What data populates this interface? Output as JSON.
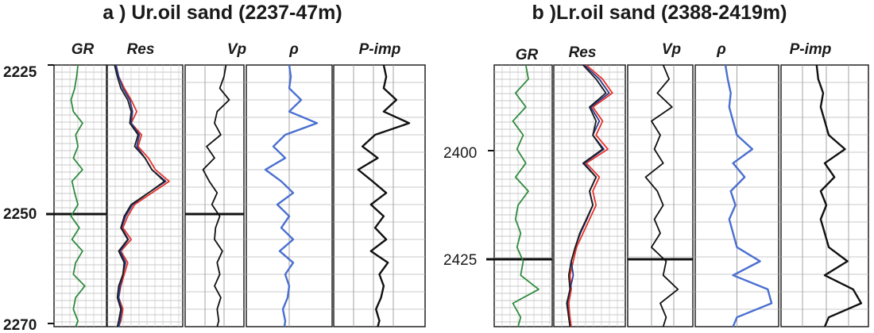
{
  "panels": [
    {
      "title": "a ) Ur.oil sand (2237-47m)"
    },
    {
      "title": "b )Lr.oil sand (2388-2419m)"
    }
  ],
  "colors": {
    "gr": "#2e8b3e",
    "res_deep": "#1a1a1a",
    "res_shallow": "#e8322a",
    "res_medium": "#2a3a8c",
    "rho": "#4a6fd0",
    "curve": "#111111"
  },
  "chart_data": [
    {
      "type": "line",
      "title": "a ) Ur.oil sand (2237-47m)",
      "depth_ticks": [
        "2225",
        "2250",
        "2270"
      ],
      "ylim": [
        2225,
        2270
      ],
      "tracks": [
        "GR",
        "Res",
        "Vp",
        "ρ",
        "P-imp"
      ],
      "marker_depth": 2250,
      "depth": [
        2225,
        2227,
        2229,
        2231,
        2233,
        2235,
        2237,
        2239,
        2241,
        2243,
        2245,
        2247,
        2249,
        2251,
        2253,
        2255,
        2257,
        2259,
        2261,
        2263,
        2265,
        2267,
        2269,
        2270
      ],
      "series": [
        {
          "name": "GR",
          "track": "GR",
          "color": "#2e8b3e",
          "values": [
            0.45,
            0.42,
            0.38,
            0.3,
            0.35,
            0.55,
            0.4,
            0.45,
            0.35,
            0.55,
            0.32,
            0.38,
            0.45,
            0.3,
            0.48,
            0.32,
            0.55,
            0.4,
            0.35,
            0.6,
            0.4,
            0.35,
            0.45,
            0.4
          ]
        },
        {
          "name": "Res shallow",
          "track": "Res",
          "color": "#e8322a",
          "values": [
            0.08,
            0.12,
            0.2,
            0.3,
            0.38,
            0.3,
            0.45,
            0.4,
            0.55,
            0.65,
            0.85,
            0.6,
            0.35,
            0.25,
            0.18,
            0.3,
            0.15,
            0.25,
            0.2,
            0.15,
            0.12,
            0.18,
            0.15,
            0.12
          ]
        },
        {
          "name": "Res medium",
          "track": "Res",
          "color": "#2a3a8c",
          "values": [
            0.08,
            0.12,
            0.18,
            0.28,
            0.32,
            0.3,
            0.42,
            0.38,
            0.5,
            0.6,
            0.8,
            0.55,
            0.32,
            0.22,
            0.16,
            0.26,
            0.14,
            0.22,
            0.18,
            0.14,
            0.12,
            0.16,
            0.14,
            0.12
          ]
        },
        {
          "name": "Res deep",
          "track": "Res",
          "color": "#1a1a1a",
          "values": [
            0.06,
            0.1,
            0.15,
            0.25,
            0.3,
            0.28,
            0.4,
            0.35,
            0.5,
            0.6,
            0.78,
            0.55,
            0.3,
            0.2,
            0.15,
            0.25,
            0.12,
            0.2,
            0.18,
            0.12,
            0.1,
            0.15,
            0.12,
            0.1
          ]
        },
        {
          "name": "Vp",
          "track": "Vp",
          "color": "#111111",
          "values": [
            0.72,
            0.68,
            0.6,
            0.78,
            0.55,
            0.5,
            0.62,
            0.35,
            0.5,
            0.28,
            0.4,
            0.55,
            0.45,
            0.6,
            0.52,
            0.5,
            0.65,
            0.55,
            0.6,
            0.5,
            0.62,
            0.55,
            0.58,
            0.55
          ]
        },
        {
          "name": "ρ",
          "track": "ρ",
          "color": "#4a6fd0",
          "values": [
            0.5,
            0.52,
            0.5,
            0.65,
            0.5,
            0.85,
            0.45,
            0.3,
            0.45,
            0.2,
            0.4,
            0.55,
            0.35,
            0.5,
            0.4,
            0.55,
            0.38,
            0.55,
            0.45,
            0.5,
            0.48,
            0.42,
            0.45,
            0.44
          ]
        },
        {
          "name": "P-imp",
          "track": "P-imp",
          "color": "#111111",
          "values": [
            0.55,
            0.58,
            0.55,
            0.7,
            0.55,
            0.85,
            0.45,
            0.3,
            0.48,
            0.25,
            0.42,
            0.58,
            0.4,
            0.55,
            0.45,
            0.58,
            0.4,
            0.6,
            0.5,
            0.55,
            0.52,
            0.46,
            0.5,
            0.48
          ]
        }
      ]
    },
    {
      "type": "line",
      "title": "b )Lr.oil sand (2388-2419m)",
      "depth_ticks": [
        "2400",
        "2425"
      ],
      "ylim": [
        2383,
        2439
      ],
      "tracks": [
        "GR",
        "Res",
        "Vp",
        "ρ",
        "P-imp"
      ],
      "marker_depth": 2425,
      "depth": [
        2383,
        2386,
        2389,
        2392,
        2395,
        2398,
        2401,
        2404,
        2407,
        2410,
        2413,
        2416,
        2419,
        2422,
        2425,
        2428,
        2431,
        2434,
        2437,
        2439
      ],
      "series": [
        {
          "name": "GR",
          "track": "GR",
          "color": "#2e8b3e",
          "values": [
            0.55,
            0.6,
            0.35,
            0.55,
            0.3,
            0.5,
            0.38,
            0.55,
            0.35,
            0.6,
            0.4,
            0.35,
            0.45,
            0.38,
            0.5,
            0.45,
            0.8,
            0.3,
            0.45,
            0.4
          ]
        },
        {
          "name": "Res shallow",
          "track": "Res",
          "color": "#e8322a",
          "values": [
            0.45,
            0.7,
            0.85,
            0.55,
            0.7,
            0.6,
            0.78,
            0.45,
            0.65,
            0.55,
            0.6,
            0.5,
            0.4,
            0.3,
            0.25,
            0.2,
            0.22,
            0.18,
            0.2,
            0.22
          ]
        },
        {
          "name": "Res medium",
          "track": "Res",
          "color": "#2a3a8c",
          "values": [
            0.42,
            0.65,
            0.8,
            0.52,
            0.65,
            0.55,
            0.72,
            0.42,
            0.6,
            0.5,
            0.55,
            0.46,
            0.36,
            0.28,
            0.22,
            0.25,
            0.2,
            0.16,
            0.18,
            0.2
          ]
        },
        {
          "name": "Res deep",
          "track": "Res",
          "color": "#1a1a1a",
          "values": [
            0.4,
            0.6,
            0.75,
            0.5,
            0.6,
            0.55,
            0.7,
            0.4,
            0.6,
            0.5,
            0.55,
            0.45,
            0.35,
            0.28,
            0.22,
            0.18,
            0.2,
            0.15,
            0.18,
            0.2
          ]
        },
        {
          "name": "Vp",
          "track": "Vp",
          "color": "#111111",
          "values": [
            0.55,
            0.65,
            0.45,
            0.7,
            0.35,
            0.5,
            0.4,
            0.55,
            0.25,
            0.45,
            0.55,
            0.4,
            0.5,
            0.35,
            0.6,
            0.55,
            0.8,
            0.5,
            0.6,
            0.55
          ]
        },
        {
          "name": "ρ",
          "track": "ρ",
          "color": "#4a6fd0",
          "values": [
            0.35,
            0.38,
            0.42,
            0.4,
            0.45,
            0.5,
            0.7,
            0.45,
            0.6,
            0.42,
            0.48,
            0.4,
            0.45,
            0.5,
            0.8,
            0.45,
            0.9,
            0.95,
            0.5,
            0.45
          ]
        },
        {
          "name": "P-imp",
          "track": "P-imp",
          "color": "#111111",
          "values": [
            0.4,
            0.42,
            0.48,
            0.45,
            0.5,
            0.55,
            0.75,
            0.5,
            0.62,
            0.45,
            0.52,
            0.45,
            0.5,
            0.55,
            0.78,
            0.5,
            0.85,
            0.95,
            0.55,
            0.5
          ]
        }
      ]
    }
  ]
}
